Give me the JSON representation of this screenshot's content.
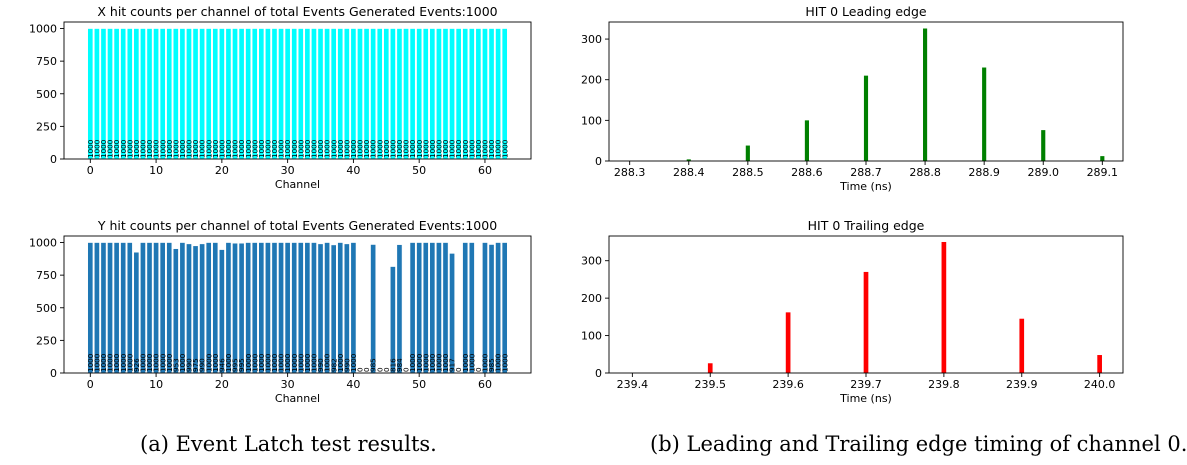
{
  "captions": {
    "a": "(a) Event Latch test results.",
    "b": "(b) Leading and Trailing edge timing of channel 0."
  },
  "colors": {
    "x_hits": "#00ffff",
    "y_hits": "#1f77b4",
    "leading": "#008000",
    "trailing": "#ff0000"
  },
  "chart_data": [
    {
      "id": "x-hits",
      "type": "bar",
      "title": "X hit counts per channel of total Events Generated Events:1000",
      "xlabel": "Channel",
      "ylabel": "",
      "x": [
        0,
        1,
        2,
        3,
        4,
        5,
        6,
        7,
        8,
        9,
        10,
        11,
        12,
        13,
        14,
        15,
        16,
        17,
        18,
        19,
        20,
        21,
        22,
        23,
        24,
        25,
        26,
        27,
        28,
        29,
        30,
        31,
        32,
        33,
        34,
        35,
        36,
        37,
        38,
        39,
        40,
        41,
        42,
        43,
        44,
        45,
        46,
        47,
        48,
        49,
        50,
        51,
        52,
        53,
        54,
        55,
        56,
        57,
        58,
        59,
        60,
        61,
        62,
        63
      ],
      "values": [
        1000,
        1000,
        1000,
        1000,
        1000,
        1000,
        1000,
        1000,
        1000,
        1000,
        1000,
        1000,
        1000,
        1000,
        1000,
        1000,
        1000,
        1000,
        1000,
        1000,
        1000,
        1000,
        1000,
        1000,
        1000,
        1000,
        1000,
        1000,
        1000,
        1000,
        1000,
        1000,
        1000,
        1000,
        1000,
        1000,
        1000,
        1000,
        1000,
        1000,
        1000,
        1000,
        1000,
        1000,
        1000,
        1000,
        1000,
        1000,
        1000,
        1000,
        1000,
        1000,
        1000,
        1000,
        1000,
        1000,
        1000,
        1000,
        1000,
        1000,
        1000,
        1000,
        1000,
        1000
      ],
      "data_labels": [
        "1000",
        "1000",
        "1000",
        "1000",
        "1000",
        "1000",
        "1000",
        "1000",
        "1000",
        "1000",
        "1000",
        "1000",
        "1000",
        "1000",
        "1000",
        "1000",
        "1000",
        "1000",
        "1000",
        "1000",
        "1000",
        "1000",
        "1000",
        "1000",
        "1000",
        "1000",
        "1000",
        "1000",
        "1000",
        "1000",
        "1000",
        "1000",
        "1000",
        "1000",
        "1000",
        "1000",
        "1000",
        "1000",
        "1000",
        "1000",
        "1000",
        "1000",
        "1000",
        "1000",
        "1000",
        "1000",
        "1000",
        "1000",
        "1000",
        "1000",
        "1000",
        "1000",
        "1000",
        "1000",
        "1000",
        "1000",
        "1000",
        "1000",
        "1000",
        "1000",
        "1000",
        "1000",
        "1000",
        "1000"
      ],
      "xticks": [
        0,
        10,
        20,
        30,
        40,
        50,
        60
      ],
      "yticks": [
        0,
        250,
        500,
        750,
        1000
      ],
      "xlim": [
        -4,
        67
      ],
      "ylim": [
        0,
        1050
      ],
      "bar_width": 0.8,
      "color": "#00ffff",
      "edgecolor": "#00ffff",
      "grid": false
    },
    {
      "id": "y-hits",
      "type": "bar",
      "title": "Y hit counts per channel of total Events Generated Events:1000",
      "xlabel": "Channel",
      "ylabel": "",
      "x": [
        0,
        1,
        2,
        3,
        4,
        5,
        6,
        7,
        8,
        9,
        10,
        11,
        12,
        13,
        14,
        15,
        16,
        17,
        18,
        19,
        20,
        21,
        22,
        23,
        24,
        25,
        26,
        27,
        28,
        29,
        30,
        31,
        32,
        33,
        34,
        35,
        36,
        37,
        38,
        39,
        40,
        41,
        42,
        43,
        44,
        45,
        46,
        47,
        48,
        49,
        50,
        51,
        52,
        53,
        54,
        55,
        56,
        57,
        58,
        59,
        60,
        61,
        62,
        63
      ],
      "values": [
        1000,
        1000,
        1000,
        1000,
        1000,
        1000,
        1000,
        926,
        1000,
        1000,
        1000,
        1000,
        1000,
        953,
        1000,
        990,
        975,
        990,
        1000,
        1000,
        946,
        1000,
        995,
        995,
        1000,
        1000,
        1000,
        1000,
        1000,
        1000,
        1000,
        1000,
        1000,
        1000,
        1000,
        990,
        1000,
        982,
        1000,
        990,
        1000,
        0,
        0,
        985,
        0,
        0,
        816,
        984,
        0,
        1000,
        1000,
        1000,
        1000,
        1000,
        1000,
        917,
        0,
        1000,
        1000,
        0,
        1000,
        985,
        1000,
        1000
      ],
      "data_labels": [
        "1000",
        "1000",
        "1000",
        "1000",
        "1000",
        "1000",
        "1000",
        "926",
        "1000",
        "1000",
        "1000",
        "1000",
        "1000",
        "953",
        "1000",
        "990",
        "975",
        "990",
        "1000",
        "1000",
        "946",
        "1000",
        "995",
        "995",
        "1000",
        "1000",
        "1000",
        "1000",
        "1000",
        "1000",
        "1000",
        "1000",
        "1000",
        "1000",
        "1000",
        "990",
        "1000",
        "982",
        "1000",
        "990",
        "1000",
        "0",
        "0",
        "985",
        "0",
        "0",
        "816",
        "984",
        "0",
        "1000",
        "1000",
        "1000",
        "1000",
        "1000",
        "1000",
        "917",
        "0",
        "1000",
        "1000",
        "0",
        "1000",
        "985",
        "1000",
        "1000"
      ],
      "xticks": [
        0,
        10,
        20,
        30,
        40,
        50,
        60
      ],
      "yticks": [
        0,
        250,
        500,
        750,
        1000
      ],
      "xlim": [
        -4,
        67
      ],
      "ylim": [
        0,
        1050
      ],
      "bar_width": 0.8,
      "color": "#1f77b4",
      "edgecolor": "#1f77b4",
      "grid": false
    },
    {
      "id": "leading",
      "type": "bar",
      "title": "HIT 0 Leading edge",
      "xlabel": "Time (ns)",
      "ylabel": "",
      "x": [
        288.4,
        288.5,
        288.6,
        288.7,
        288.8,
        288.9,
        289.0,
        289.1
      ],
      "values": [
        4,
        38,
        100,
        210,
        326,
        230,
        76,
        12
      ],
      "xticks": [
        288.3,
        288.4,
        288.5,
        288.6,
        288.7,
        288.8,
        288.9,
        289.0,
        289.1
      ],
      "xticklabels": [
        "288.3",
        "288.4",
        "288.5",
        "288.6",
        "288.7",
        "288.8",
        "288.9",
        "289.0",
        "289.1"
      ],
      "yticks": [
        0,
        100,
        200,
        300
      ],
      "xlim": [
        288.265,
        289.135
      ],
      "ylim": [
        0,
        342
      ],
      "bar_width": 0.007,
      "color": "#008000",
      "grid": false
    },
    {
      "id": "trailing",
      "type": "bar",
      "title": "HIT 0 Trailing edge",
      "xlabel": "Time (ns)",
      "ylabel": "",
      "x": [
        239.5,
        239.6,
        239.7,
        239.8,
        239.9,
        240.0
      ],
      "values": [
        26,
        162,
        270,
        350,
        145,
        48
      ],
      "xticks": [
        239.4,
        239.5,
        239.6,
        239.7,
        239.8,
        239.9,
        240.0
      ],
      "xticklabels": [
        "239.4",
        "239.5",
        "239.6",
        "239.7",
        "239.8",
        "239.9",
        "240.0"
      ],
      "yticks": [
        0,
        100,
        200,
        300
      ],
      "xlim": [
        239.37,
        240.03
      ],
      "ylim": [
        0,
        366
      ],
      "bar_width": 0.006,
      "color": "#ff0000",
      "grid": false
    }
  ]
}
